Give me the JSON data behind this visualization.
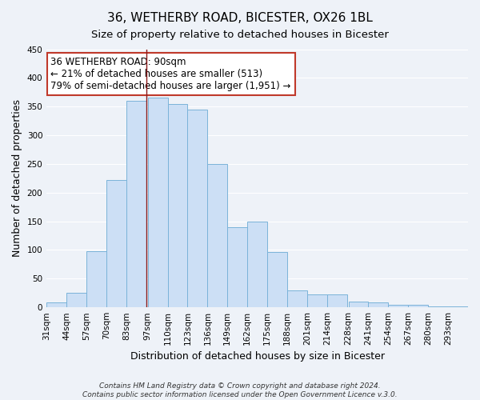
{
  "title": "36, WETHERBY ROAD, BICESTER, OX26 1BL",
  "subtitle": "Size of property relative to detached houses in Bicester",
  "xlabel": "Distribution of detached houses by size in Bicester",
  "ylabel": "Number of detached properties",
  "bin_labels": [
    "31sqm",
    "44sqm",
    "57sqm",
    "70sqm",
    "83sqm",
    "97sqm",
    "110sqm",
    "123sqm",
    "136sqm",
    "149sqm",
    "162sqm",
    "175sqm",
    "188sqm",
    "201sqm",
    "214sqm",
    "228sqm",
    "241sqm",
    "254sqm",
    "267sqm",
    "280sqm",
    "293sqm"
  ],
  "bar_values": [
    8,
    25,
    98,
    222,
    360,
    365,
    355,
    345,
    250,
    140,
    150,
    97,
    30,
    22,
    22,
    10,
    8,
    5,
    5,
    2,
    2
  ],
  "bar_color": "#ccdff5",
  "bar_edge_color": "#7ab3d9",
  "marker_line_color": "#8b1a1a",
  "annotation_text": "36 WETHERBY ROAD: 90sqm\n← 21% of detached houses are smaller (513)\n79% of semi-detached houses are larger (1,951) →",
  "annotation_box_color": "#ffffff",
  "annotation_box_edge_color": "#c0392b",
  "ylim": [
    0,
    450
  ],
  "yticks": [
    0,
    50,
    100,
    150,
    200,
    250,
    300,
    350,
    400,
    450
  ],
  "footer_line1": "Contains HM Land Registry data © Crown copyright and database right 2024.",
  "footer_line2": "Contains public sector information licensed under the Open Government Licence v.3.0.",
  "background_color": "#eef2f8",
  "grid_color": "#ffffff",
  "title_fontsize": 11,
  "subtitle_fontsize": 9.5,
  "axis_label_fontsize": 9,
  "tick_fontsize": 7.5,
  "annotation_fontsize": 8.5,
  "footer_fontsize": 6.5
}
